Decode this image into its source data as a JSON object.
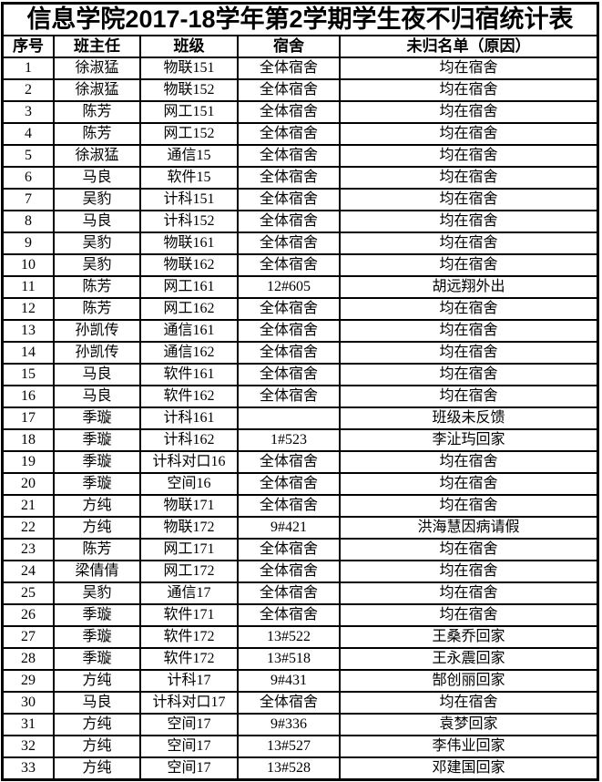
{
  "title": "信息学院2017-18学年第2学期学生夜不归宿统计表",
  "table": {
    "columns": [
      "index",
      "teacher",
      "class",
      "dorm",
      "reason"
    ],
    "headers": [
      "序号",
      "班主任",
      "班级",
      "宿舍",
      "未归名单（原因）"
    ],
    "rows": [
      [
        "1",
        "徐淑猛",
        "物联151",
        "全体宿舍",
        "均在宿舍"
      ],
      [
        "2",
        "徐淑猛",
        "物联152",
        "全体宿舍",
        "均在宿舍"
      ],
      [
        "3",
        "陈芳",
        "网工151",
        "全体宿舍",
        "均在宿舍"
      ],
      [
        "4",
        "陈芳",
        "网工152",
        "全体宿舍",
        "均在宿舍"
      ],
      [
        "5",
        "徐淑猛",
        "通信15",
        "全体宿舍",
        "均在宿舍"
      ],
      [
        "6",
        "马良",
        "软件15",
        "全体宿舍",
        "均在宿舍"
      ],
      [
        "7",
        "吴豹",
        "计科151",
        "全体宿舍",
        "均在宿舍"
      ],
      [
        "8",
        "马良",
        "计科152",
        "全体宿舍",
        "均在宿舍"
      ],
      [
        "9",
        "吴豹",
        "物联161",
        "全体宿舍",
        "均在宿舍"
      ],
      [
        "10",
        "吴豹",
        "物联162",
        "全体宿舍",
        "均在宿舍"
      ],
      [
        "11",
        "陈芳",
        "网工161",
        "12#605",
        "胡远翔外出"
      ],
      [
        "12",
        "陈芳",
        "网工162",
        "全体宿舍",
        "均在宿舍"
      ],
      [
        "13",
        "孙凯传",
        "通信161",
        "全体宿舍",
        "均在宿舍"
      ],
      [
        "14",
        "孙凯传",
        "通信162",
        "全体宿舍",
        "均在宿舍"
      ],
      [
        "15",
        "马良",
        "软件161",
        "全体宿舍",
        "均在宿舍"
      ],
      [
        "16",
        "马良",
        "软件162",
        "全体宿舍",
        "均在宿舍"
      ],
      [
        "17",
        "季璇",
        "计科161",
        "",
        "班级未反馈"
      ],
      [
        "18",
        "季璇",
        "计科162",
        "1#523",
        "李沚玙回家"
      ],
      [
        "19",
        "季璇",
        "计科对口16",
        "全体宿舍",
        "均在宿舍"
      ],
      [
        "20",
        "季璇",
        "空间16",
        "全体宿舍",
        "均在宿舍"
      ],
      [
        "21",
        "方纯",
        "物联171",
        "全体宿舍",
        "均在宿舍"
      ],
      [
        "22",
        "方纯",
        "物联172",
        "9#421",
        "洪海慧因病请假"
      ],
      [
        "23",
        "陈芳",
        "网工171",
        "全体宿舍",
        "均在宿舍"
      ],
      [
        "24",
        "梁倩倩",
        "网工172",
        "全体宿舍",
        "均在宿舍"
      ],
      [
        "25",
        "吴豹",
        "通信17",
        "全体宿舍",
        "均在宿舍"
      ],
      [
        "26",
        "季璇",
        "软件171",
        "全体宿舍",
        "均在宿舍"
      ],
      [
        "27",
        "季璇",
        "软件172",
        "13#522",
        "王桑乔回家"
      ],
      [
        "28",
        "季璇",
        "软件172",
        "13#518",
        "王永震回家"
      ],
      [
        "29",
        "方纯",
        "计科17",
        "9#431",
        "郜创丽回家"
      ],
      [
        "30",
        "马良",
        "计科对口17",
        "全体宿舍",
        "均在宿舍"
      ],
      [
        "31",
        "方纯",
        "空间17",
        "9#336",
        "袁梦回家"
      ],
      [
        "32",
        "方纯",
        "空间17",
        "13#527",
        "李伟业回家"
      ],
      [
        "33",
        "方纯",
        "空间17",
        "13#528",
        "邓建国回家"
      ]
    ]
  }
}
